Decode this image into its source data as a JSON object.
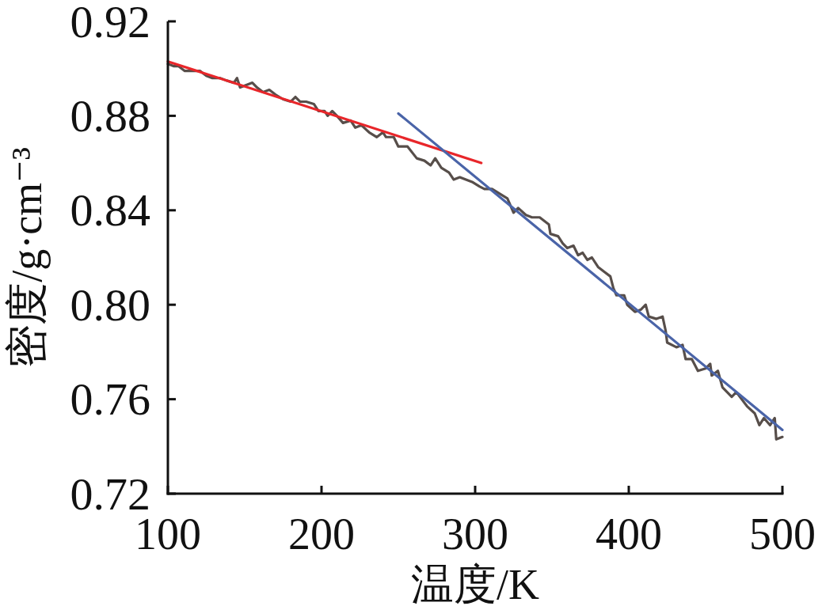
{
  "chart_data": {
    "type": "line",
    "xlabel": "温度/K",
    "ylabel": "密度/g·cm⁻³",
    "xlim": [
      100,
      500
    ],
    "xticks": [
      100,
      200,
      300,
      400,
      500
    ],
    "ylim": [
      0.72,
      0.92
    ],
    "yticks": [
      0.72,
      0.76,
      {
        "value": 0.8,
        "label": "0.80"
      },
      0.84,
      0.88,
      0.92
    ],
    "series": [
      {
        "color": "#574e4a",
        "x": [
          100,
          104,
          107,
          111,
          116,
          121,
          125,
          129,
          134,
          138,
          143,
          145,
          147,
          151,
          155,
          158,
          162,
          166,
          170,
          175,
          180,
          183,
          186,
          190,
          195,
          198,
          202,
          204,
          207,
          210,
          214,
          219,
          222,
          226,
          231,
          236,
          240,
          242,
          247,
          250,
          256,
          262,
          267,
          271,
          274,
          278,
          283,
          286,
          290,
          294,
          298,
          303,
          306,
          311,
          316,
          321,
          325,
          328,
          333,
          337,
          342,
          348,
          349,
          354,
          357,
          360,
          364,
          367,
          370,
          373,
          376,
          380,
          384,
          388,
          390,
          392,
          397,
          399,
          404,
          408,
          411,
          413,
          418,
          422,
          424,
          425,
          431,
          435,
          437,
          441,
          445,
          450,
          453,
          454,
          458,
          461,
          467,
          470,
          477,
          482,
          485,
          488,
          492,
          495,
          496,
          500
        ],
        "values": [
          0.902,
          0.901,
          0.901,
          0.899,
          0.899,
          0.899,
          0.897,
          0.896,
          0.896,
          0.895,
          0.894,
          0.896,
          0.892,
          0.893,
          0.894,
          0.892,
          0.89,
          0.891,
          0.889,
          0.887,
          0.886,
          0.888,
          0.886,
          0.886,
          0.885,
          0.882,
          0.882,
          0.88,
          0.882,
          0.88,
          0.877,
          0.878,
          0.875,
          0.876,
          0.873,
          0.871,
          0.873,
          0.871,
          0.871,
          0.867,
          0.867,
          0.862,
          0.861,
          0.859,
          0.862,
          0.858,
          0.856,
          0.853,
          0.854,
          0.853,
          0.852,
          0.85,
          0.849,
          0.849,
          0.847,
          0.845,
          0.839,
          0.841,
          0.838,
          0.837,
          0.837,
          0.834,
          0.83,
          0.829,
          0.826,
          0.824,
          0.825,
          0.821,
          0.822,
          0.819,
          0.82,
          0.816,
          0.814,
          0.812,
          0.807,
          0.804,
          0.804,
          0.8,
          0.797,
          0.798,
          0.8,
          0.795,
          0.794,
          0.795,
          0.789,
          0.784,
          0.782,
          0.783,
          0.777,
          0.777,
          0.772,
          0.773,
          0.775,
          0.77,
          0.772,
          0.765,
          0.761,
          0.763,
          0.757,
          0.754,
          0.749,
          0.752,
          0.749,
          0.752,
          0.743,
          0.744
        ]
      },
      {
        "color": "#e8262a",
        "x": [
          100,
          304
        ],
        "values": [
          0.903,
          0.86
        ]
      },
      {
        "color": "#4a64a8",
        "x": [
          250,
          500
        ],
        "values": [
          0.881,
          0.747
        ]
      }
    ]
  }
}
